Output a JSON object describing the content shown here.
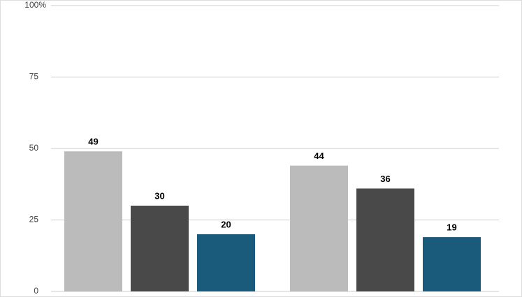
{
  "chart_data": {
    "type": "bar",
    "categories": [
      null,
      null
    ],
    "series": [
      {
        "color": "#bbbbbb",
        "values": [
          49,
          44
        ]
      },
      {
        "color": "#494949",
        "values": [
          30,
          36
        ]
      },
      {
        "color": "#1a5a7a",
        "values": [
          20,
          19
        ]
      }
    ],
    "ylim": [
      0,
      100
    ],
    "yticks": [
      0,
      25,
      50,
      75,
      {
        "value": 100,
        "label": "100%"
      }
    ],
    "grid": true
  }
}
